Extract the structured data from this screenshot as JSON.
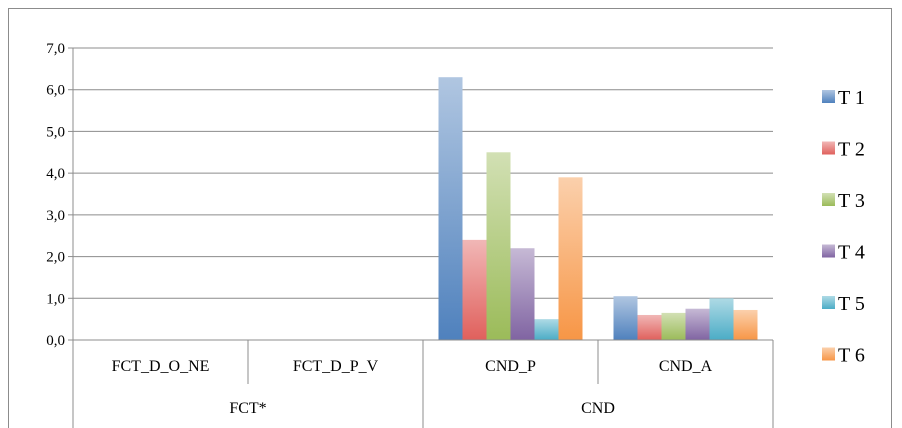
{
  "chart_data": {
    "type": "bar",
    "title": "",
    "xlabel": "",
    "ylabel": "",
    "ylim": [
      0,
      7
    ],
    "yticks": [
      "0,0",
      "1,0",
      "2,0",
      "3,0",
      "4,0",
      "5,0",
      "6,0",
      "7,0"
    ],
    "grid": "horizontal",
    "legend_position": "right",
    "categories": [
      "FCT_D_O_NE",
      "FCT_D_P_V",
      "CND_P",
      "CND_A"
    ],
    "groups": [
      {
        "label": "FCT*",
        "categories": [
          "FCT_D_O_NE",
          "FCT_D_P_V"
        ]
      },
      {
        "label": "CND",
        "categories": [
          "CND_P",
          "CND_A"
        ]
      }
    ],
    "series": [
      {
        "name": "T 1",
        "color": "#4f81bd",
        "values": [
          0,
          0,
          6.3,
          1.05
        ]
      },
      {
        "name": "T 2",
        "color": "#e0605c",
        "values": [
          0,
          0,
          2.4,
          0.6
        ]
      },
      {
        "name": "T 3",
        "color": "#9bbb59",
        "values": [
          0,
          0,
          4.5,
          0.65
        ]
      },
      {
        "name": "T 4",
        "color": "#8064a2",
        "values": [
          0,
          0,
          2.2,
          0.75
        ]
      },
      {
        "name": "T 5",
        "color": "#4bacc6",
        "values": [
          0,
          0,
          0.5,
          1.0
        ]
      },
      {
        "name": "T 6",
        "color": "#f79646",
        "values": [
          0,
          0,
          3.9,
          0.72
        ]
      }
    ]
  }
}
